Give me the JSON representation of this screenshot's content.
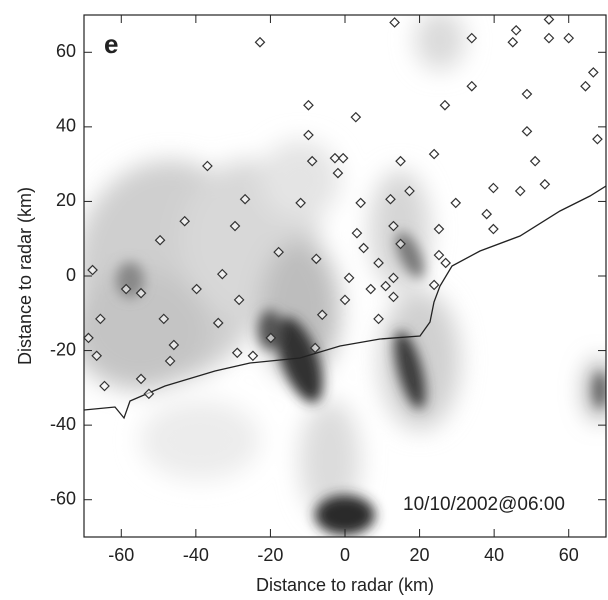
{
  "chart_data": {
    "type": "scatter",
    "panel_label": "e",
    "annotation": "10/10/2002@06:00",
    "x_label": "Distance to radar (km)",
    "y_label": "Distance to radar (km)",
    "xlim": [
      -70,
      70
    ],
    "ylim": [
      -70,
      70
    ],
    "xticks": [
      -60,
      -40,
      -20,
      0,
      20,
      40,
      60
    ],
    "yticks": [
      -60,
      -40,
      -20,
      0,
      20,
      40,
      60
    ],
    "color": "#333333",
    "x": [
      -22.8,
      13.3,
      34,
      45.9,
      45,
      54.7,
      54.7,
      60,
      66.6,
      64.5,
      67.7,
      34,
      48.8,
      26.8,
      -9.8,
      2.9,
      -9.8,
      48.8,
      -8.8,
      -2.7,
      -0.5,
      -1.9,
      23.9,
      14.9,
      51,
      -36.9,
      39.8,
      47,
      53.6,
      17.3,
      4.2,
      12.2,
      29.7,
      -11.9,
      -26.8,
      -43,
      -29.5,
      38,
      13,
      25.2,
      39.8,
      3.2,
      -49.6,
      14.9,
      5,
      -17.8,
      -7.7,
      25.2,
      27,
      9,
      -67.7,
      -32.9,
      1.1,
      13,
      6.9,
      -58.7,
      -39.8,
      23.9,
      10.9,
      -54.7,
      -28.4,
      13,
      0,
      -6.1,
      -48.6,
      -65.6,
      -34,
      9,
      -68.8,
      -45.9,
      -8,
      -19.9,
      -28.9,
      -66.6,
      -24.7,
      -46.9,
      -54.7,
      -64.5,
      -52.6
    ],
    "values": [
      62.7,
      68,
      63.8,
      65.9,
      62.7,
      68.8,
      63.8,
      63.8,
      54.6,
      50.9,
      36.7,
      50.9,
      48.8,
      45.8,
      45.8,
      42.6,
      37.8,
      38.8,
      30.8,
      31.6,
      31.6,
      27.6,
      32.7,
      30.8,
      30.8,
      29.5,
      23.6,
      22.8,
      24.6,
      22.8,
      19.6,
      20.6,
      19.6,
      19.6,
      20.6,
      14.7,
      13.4,
      16.6,
      13.4,
      12.6,
      12.6,
      11.5,
      9.6,
      8.6,
      7.5,
      6.4,
      4.6,
      5.6,
      3.5,
      3.5,
      1.6,
      0.5,
      -0.5,
      -0.5,
      -3.5,
      -3.5,
      -3.5,
      -2.4,
      -2.7,
      -4.6,
      -6.4,
      -5.6,
      -6.4,
      -10.4,
      -11.5,
      -11.5,
      -12.6,
      -11.5,
      -16.6,
      -18.5,
      -19.3,
      -16.6,
      -20.6,
      -21.4,
      -21.4,
      -22.8,
      -27.6,
      -29.5,
      -31.6
    ]
  }
}
